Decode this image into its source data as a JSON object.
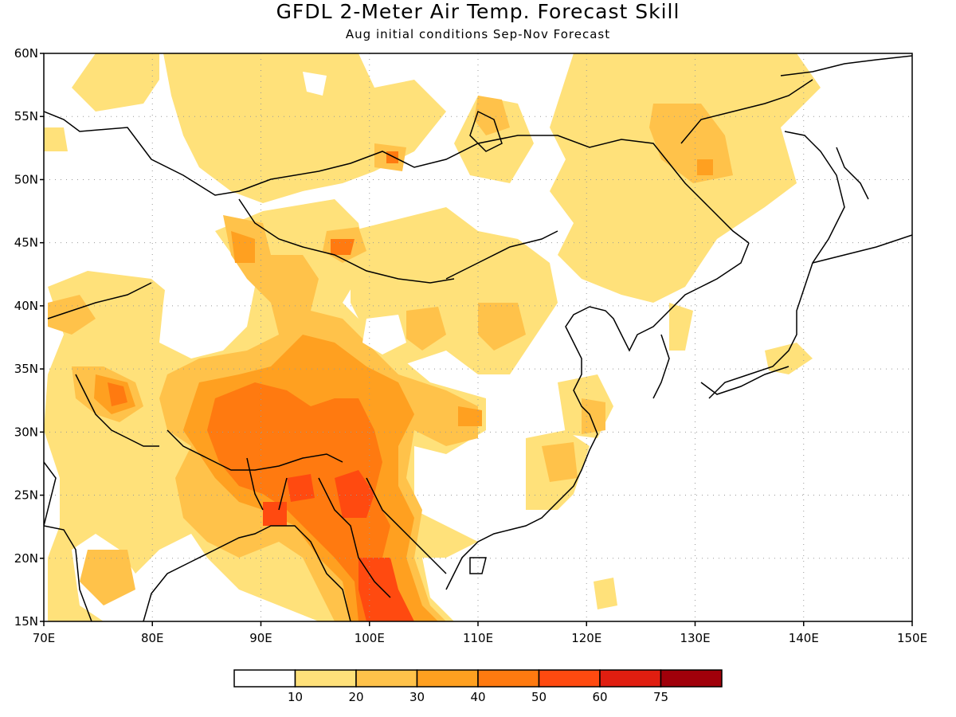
{
  "title": "GFDL 2-Meter Air Temp. Forecast Skill",
  "subtitle": "Aug initial conditions  Sep-Nov Forecast",
  "map": {
    "lon_range": [
      70,
      150
    ],
    "lat_range": [
      15,
      60
    ],
    "lon_ticks": [
      "70E",
      "80E",
      "90E",
      "100E",
      "110E",
      "120E",
      "130E",
      "140E",
      "150E"
    ],
    "lat_ticks": [
      "15N",
      "20N",
      "25N",
      "30N",
      "35N",
      "40N",
      "45N",
      "50N",
      "55N",
      "60N"
    ],
    "gridlines": "dotted"
  },
  "colorbar": {
    "labels": [
      "10",
      "20",
      "30",
      "40",
      "50",
      "60",
      "75"
    ],
    "colors": [
      "#ffffff",
      "#ffe17a",
      "#ffc24a",
      "#ffa020",
      "#ff7a10",
      "#ff4a10",
      "#e01e10",
      "#a0000a"
    ]
  }
}
